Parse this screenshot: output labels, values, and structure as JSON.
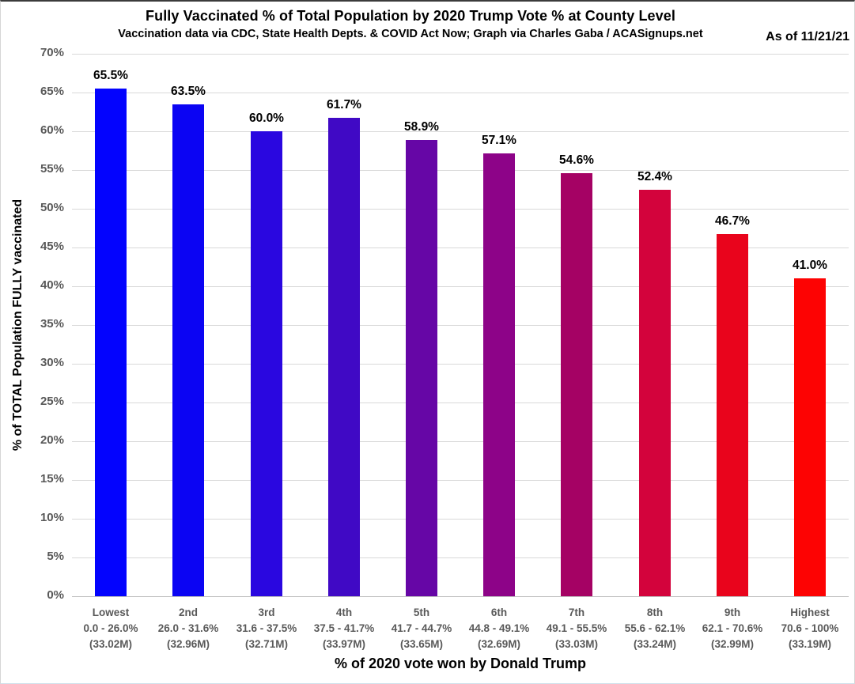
{
  "header": {
    "title": "Fully Vaccinated % of Total Population by 2020 Trump Vote % at County Level",
    "subtitle": "Vaccination data via CDC, State Health Depts. & COVID Act Now; Graph via Charles Gaba / ACASignups.net",
    "as_of": "As of 11/21/21"
  },
  "chart_data": {
    "type": "bar",
    "title": "Fully Vaccinated % of Total Population by 2020 Trump Vote % at County Level",
    "subtitle": "Vaccination data via CDC, State Health Depts. & COVID Act Now; Graph via Charles Gaba / ACASignups.net",
    "xlabel": "% of 2020 vote won by Donald Trump",
    "ylabel": "% of TOTAL Population FULLY vaccinated",
    "ylim": [
      0,
      70
    ],
    "yticks": [
      "70%",
      "65%",
      "60%",
      "55%",
      "50%",
      "45%",
      "40%",
      "35%",
      "30%",
      "25%",
      "20%",
      "15%",
      "10%",
      "5%",
      "0%"
    ],
    "grid": true,
    "legend": "none",
    "categories": [
      {
        "tier": "Lowest",
        "range": "0.0 - 26.0%",
        "population": "(33.02M)"
      },
      {
        "tier": "2nd",
        "range": "26.0 - 31.6%",
        "population": "(32.96M)"
      },
      {
        "tier": "3rd",
        "range": "31.6 - 37.5%",
        "population": "(32.71M)"
      },
      {
        "tier": "4th",
        "range": "37.5 - 41.7%",
        "population": "(33.97M)"
      },
      {
        "tier": "5th",
        "range": "41.7 - 44.7%",
        "population": "(33.65M)"
      },
      {
        "tier": "6th",
        "range": "44.8 - 49.1%",
        "population": "(32.69M)"
      },
      {
        "tier": "7th",
        "range": "49.1 - 55.5%",
        "population": "(33.03M)"
      },
      {
        "tier": "8th",
        "range": "55.6 - 62.1%",
        "population": "(33.24M)"
      },
      {
        "tier": "9th",
        "range": "62.1 - 70.6%",
        "population": "(32.99M)"
      },
      {
        "tier": "Highest",
        "range": "70.6 - 100%",
        "population": "(33.19M)"
      }
    ],
    "values": [
      65.5,
      63.5,
      60.0,
      61.7,
      58.9,
      57.1,
      54.6,
      52.4,
      46.7,
      41.0
    ],
    "value_labels": [
      "65.5%",
      "63.5%",
      "60.0%",
      "61.7%",
      "58.9%",
      "57.1%",
      "54.6%",
      "52.4%",
      "46.7%",
      "41.0%"
    ],
    "bar_colors": [
      "#0303FE",
      "#0B04F3",
      "#2A07E0",
      "#4009C5",
      "#6606A6",
      "#8D0388",
      "#A50264",
      "#D3033C",
      "#E9041C",
      "#FD0303"
    ]
  },
  "colors": {
    "axis_text": "#595959",
    "gridline": "#D9D9D9",
    "baseline": "#BFBFBF",
    "title_text": "#000000",
    "background": "#FFFFFF"
  }
}
